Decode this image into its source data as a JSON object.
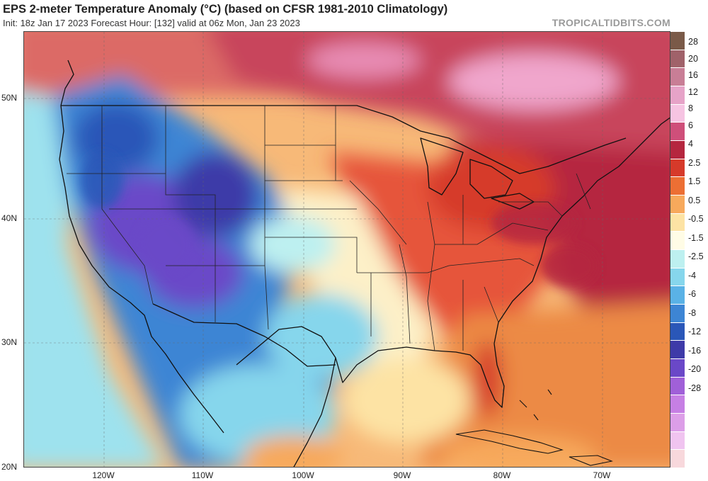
{
  "header": {
    "title": "EPS 2-meter Temperature Anomaly (°C) (based on CFSR 1981-2010 Climatology)",
    "subtitle": "Init: 18z Jan 17 2023   Forecast Hour: [132]   valid at 06z Mon, Jan 23 2023",
    "credit": "TROPICALTIDBITS.COM"
  },
  "map": {
    "latitude_labels": [
      "50N",
      "40N",
      "30N",
      "20N"
    ],
    "longitude_labels": [
      "120W",
      "110W",
      "100W",
      "90W",
      "80W",
      "70W"
    ]
  },
  "colorbar": {
    "labels": [
      "28",
      "20",
      "16",
      "12",
      "8",
      "6",
      "4",
      "2.5",
      "1.5",
      "0.5",
      "-0.5",
      "-1.5",
      "-2.5",
      "-4",
      "-6",
      "-8",
      "-12",
      "-16",
      "-20",
      "-28"
    ],
    "colors": [
      "#7a5a48",
      "#a0626a",
      "#c87e96",
      "#e6a3c8",
      "#f6c4e2",
      "#cf4f7a",
      "#b5263f",
      "#d63a2a",
      "#ec6f34",
      "#f7a95c",
      "#fde3a4",
      "#fffce6",
      "#bdf0f0",
      "#86d6ec",
      "#5ab2e6",
      "#3d85d4",
      "#2a57b8",
      "#3e3aa8",
      "#6a48c8",
      "#a060d8",
      "#c67fe4",
      "#dc9ee8",
      "#f0c4f0",
      "#f8d8dc"
    ]
  }
}
